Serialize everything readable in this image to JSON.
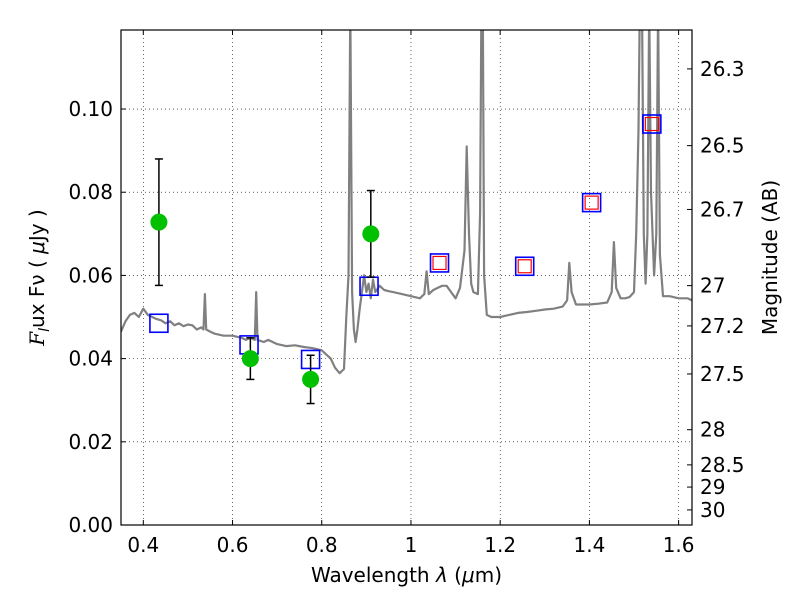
{
  "chart_data": {
    "type": "scatter",
    "title": "",
    "xlabel": "Wavelength  λ (μm)",
    "ylabel": "Flux  Fν  ( μJy )",
    "ylabel_right": "Magnitude (AB)",
    "xlim": [
      0.35,
      1.63
    ],
    "ylim": [
      0.0,
      0.119
    ],
    "grid": true,
    "legend": "none",
    "x_ticks": [
      {
        "value": 0.4,
        "label": "0.4"
      },
      {
        "value": 0.6,
        "label": "0.6"
      },
      {
        "value": 0.8,
        "label": "0.8"
      },
      {
        "value": 1.0,
        "label": "1"
      },
      {
        "value": 1.2,
        "label": "1.2"
      },
      {
        "value": 1.4,
        "label": "1.4"
      },
      {
        "value": 1.6,
        "label": "1.6"
      }
    ],
    "y_ticks": [
      {
        "value": 0.0,
        "label": "0.00"
      },
      {
        "value": 0.02,
        "label": "0.02"
      },
      {
        "value": 0.04,
        "label": "0.04"
      },
      {
        "value": 0.06,
        "label": "0.06"
      },
      {
        "value": 0.08,
        "label": "0.08"
      },
      {
        "value": 0.1,
        "label": "0.10"
      }
    ],
    "right_ticks": [
      {
        "mag": 26.3,
        "label": "26.3"
      },
      {
        "mag": 26.5,
        "label": "26.5"
      },
      {
        "mag": 26.7,
        "label": "26.7"
      },
      {
        "mag": 27.0,
        "label": "27"
      },
      {
        "mag": 27.2,
        "label": "27.2"
      },
      {
        "mag": 27.5,
        "label": "27.5"
      },
      {
        "mag": 28.0,
        "label": "28"
      },
      {
        "mag": 28.5,
        "label": "28.5"
      },
      {
        "mag": 29.0,
        "label": "29"
      },
      {
        "mag": 30.0,
        "label": "30"
      }
    ],
    "series": [
      {
        "kind": "line",
        "color": "#808080",
        "points": [
          [
            0.35,
            0.0465
          ],
          [
            0.36,
            0.049
          ],
          [
            0.37,
            0.0505
          ],
          [
            0.38,
            0.051
          ],
          [
            0.39,
            0.05
          ],
          [
            0.4,
            0.052
          ],
          [
            0.41,
            0.0505
          ],
          [
            0.42,
            0.05
          ],
          [
            0.43,
            0.0495
          ],
          [
            0.44,
            0.0492
          ],
          [
            0.45,
            0.0485
          ],
          [
            0.46,
            0.049
          ],
          [
            0.47,
            0.048
          ],
          [
            0.48,
            0.0485
          ],
          [
            0.49,
            0.0478
          ],
          [
            0.5,
            0.0482
          ],
          [
            0.51,
            0.048
          ],
          [
            0.52,
            0.047
          ],
          [
            0.53,
            0.0475
          ],
          [
            0.535,
            0.047
          ],
          [
            0.538,
            0.0555
          ],
          [
            0.541,
            0.047
          ],
          [
            0.55,
            0.0465
          ],
          [
            0.56,
            0.046
          ],
          [
            0.58,
            0.0455
          ],
          [
            0.6,
            0.0455
          ],
          [
            0.62,
            0.045
          ],
          [
            0.63,
            0.0445
          ],
          [
            0.64,
            0.045
          ],
          [
            0.65,
            0.0445
          ],
          [
            0.653,
            0.056
          ],
          [
            0.656,
            0.0445
          ],
          [
            0.67,
            0.044
          ],
          [
            0.68,
            0.0445
          ],
          [
            0.7,
            0.0435
          ],
          [
            0.72,
            0.043
          ],
          [
            0.74,
            0.0432
          ],
          [
            0.76,
            0.0428
          ],
          [
            0.78,
            0.0425
          ],
          [
            0.8,
            0.042
          ],
          [
            0.82,
            0.04
          ],
          [
            0.83,
            0.0378
          ],
          [
            0.84,
            0.0365
          ],
          [
            0.85,
            0.0375
          ],
          [
            0.855,
            0.05
          ],
          [
            0.86,
            0.06
          ],
          [
            0.864,
            0.125
          ],
          [
            0.868,
            0.056
          ],
          [
            0.872,
            0.047
          ],
          [
            0.876,
            0.044
          ],
          [
            0.88,
            0.047
          ],
          [
            0.885,
            0.052
          ],
          [
            0.89,
            0.056
          ],
          [
            0.895,
            0.06
          ],
          [
            0.9,
            0.056
          ],
          [
            0.905,
            0.058
          ],
          [
            0.91,
            0.0545
          ],
          [
            0.915,
            0.059
          ],
          [
            0.92,
            0.056
          ],
          [
            0.93,
            0.0575
          ],
          [
            0.94,
            0.0565
          ],
          [
            0.95,
            0.0562
          ],
          [
            0.96,
            0.056
          ],
          [
            0.98,
            0.0555
          ],
          [
            1.0,
            0.055
          ],
          [
            1.02,
            0.0545
          ],
          [
            1.03,
            0.0555
          ],
          [
            1.035,
            0.061
          ],
          [
            1.04,
            0.0555
          ],
          [
            1.05,
            0.0565
          ],
          [
            1.06,
            0.057
          ],
          [
            1.07,
            0.0575
          ],
          [
            1.08,
            0.0575
          ],
          [
            1.09,
            0.056
          ],
          [
            1.1,
            0.0545
          ],
          [
            1.11,
            0.057
          ],
          [
            1.12,
            0.066
          ],
          [
            1.125,
            0.091
          ],
          [
            1.13,
            0.07
          ],
          [
            1.135,
            0.058
          ],
          [
            1.14,
            0.056
          ],
          [
            1.15,
            0.0555
          ],
          [
            1.155,
            0.075
          ],
          [
            1.158,
            0.125
          ],
          [
            1.161,
            0.125
          ],
          [
            1.164,
            0.06
          ],
          [
            1.17,
            0.0505
          ],
          [
            1.18,
            0.05
          ],
          [
            1.2,
            0.05
          ],
          [
            1.22,
            0.0505
          ],
          [
            1.24,
            0.051
          ],
          [
            1.26,
            0.0512
          ],
          [
            1.28,
            0.0515
          ],
          [
            1.3,
            0.0518
          ],
          [
            1.32,
            0.052
          ],
          [
            1.34,
            0.0525
          ],
          [
            1.35,
            0.054
          ],
          [
            1.355,
            0.063
          ],
          [
            1.36,
            0.056
          ],
          [
            1.37,
            0.053
          ],
          [
            1.38,
            0.053
          ],
          [
            1.4,
            0.053
          ],
          [
            1.42,
            0.0532
          ],
          [
            1.44,
            0.0535
          ],
          [
            1.45,
            0.056
          ],
          [
            1.455,
            0.068
          ],
          [
            1.46,
            0.057
          ],
          [
            1.47,
            0.0545
          ],
          [
            1.48,
            0.0545
          ],
          [
            1.49,
            0.0548
          ],
          [
            1.5,
            0.056
          ],
          [
            1.505,
            0.07
          ],
          [
            1.51,
            0.095
          ],
          [
            1.513,
            0.125
          ],
          [
            1.518,
            0.125
          ],
          [
            1.522,
            0.07
          ],
          [
            1.526,
            0.058
          ],
          [
            1.53,
            0.07
          ],
          [
            1.534,
            0.125
          ],
          [
            1.538,
            0.08
          ],
          [
            1.545,
            0.06
          ],
          [
            1.55,
            0.07
          ],
          [
            1.554,
            0.125
          ],
          [
            1.558,
            0.065
          ],
          [
            1.565,
            0.055
          ],
          [
            1.58,
            0.055
          ],
          [
            1.6,
            0.0545
          ],
          [
            1.62,
            0.0545
          ],
          [
            1.63,
            0.054
          ]
        ]
      },
      {
        "kind": "observed",
        "color": "#00c000",
        "points": [
          {
            "x": 0.435,
            "y": 0.0728,
            "err": 0.0152
          },
          {
            "x": 0.64,
            "y": 0.04,
            "err": 0.005
          },
          {
            "x": 0.775,
            "y": 0.035,
            "err": 0.0058
          },
          {
            "x": 0.91,
            "y": 0.07,
            "err": 0.0104
          }
        ]
      },
      {
        "kind": "model",
        "color": "#0000ff",
        "points": [
          {
            "x": 0.435,
            "y": 0.0485
          },
          {
            "x": 0.637,
            "y": 0.0433
          },
          {
            "x": 0.775,
            "y": 0.0398
          },
          {
            "x": 0.906,
            "y": 0.0574
          },
          {
            "x": 1.064,
            "y": 0.063
          },
          {
            "x": 1.255,
            "y": 0.0622
          },
          {
            "x": 1.405,
            "y": 0.0775
          },
          {
            "x": 1.54,
            "y": 0.0964
          }
        ]
      },
      {
        "kind": "model-inner",
        "color": "#ff0000",
        "points": [
          {
            "x": 1.064,
            "y": 0.063
          },
          {
            "x": 1.255,
            "y": 0.0622
          },
          {
            "x": 1.405,
            "y": 0.0775
          },
          {
            "x": 1.54,
            "y": 0.0964
          }
        ]
      }
    ]
  }
}
